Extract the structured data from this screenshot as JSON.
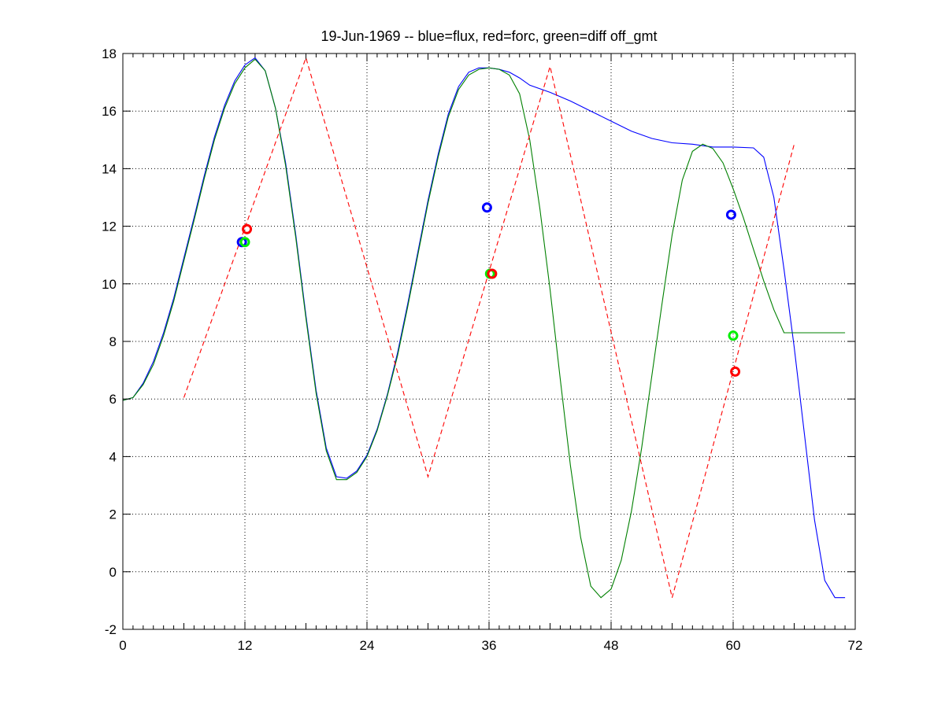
{
  "chart_data": {
    "type": "line",
    "title": "19-Jun-1969 -- blue=flux, red=forc, green=diff off_gmt",
    "xlabel": "",
    "ylabel": "",
    "xlim": [
      0,
      72
    ],
    "ylim": [
      -2,
      18
    ],
    "x_ticks": [
      0,
      12,
      24,
      36,
      48,
      60,
      72
    ],
    "y_ticks": [
      -2,
      0,
      2,
      4,
      6,
      8,
      10,
      12,
      14,
      16,
      18
    ],
    "grid": true,
    "minor_ticks": true,
    "colors": {
      "flux": "#0000ff",
      "forc": "#ff0000",
      "diff": "#008000",
      "marker_green": "#00ee00"
    },
    "series": [
      {
        "color": "#0000ff",
        "style": "solid",
        "x": [
          0,
          1,
          2,
          3,
          4,
          5,
          6,
          7,
          8,
          9,
          10,
          11,
          12,
          13,
          14,
          15,
          16,
          17,
          18,
          19,
          20,
          21,
          22,
          23,
          24,
          25,
          26,
          27,
          28,
          29,
          30,
          31,
          32,
          33,
          34,
          35,
          36,
          37,
          38,
          39,
          40,
          42,
          44,
          46,
          48,
          50,
          52,
          54,
          56,
          58,
          60,
          62,
          63,
          64,
          65,
          66,
          67,
          68,
          69,
          70,
          71
        ],
        "y": [
          5.95,
          6.05,
          6.55,
          7.3,
          8.3,
          9.5,
          10.9,
          12.3,
          13.75,
          15.1,
          16.2,
          17.05,
          17.6,
          17.85,
          17.4,
          16.1,
          14.2,
          11.7,
          8.9,
          6.3,
          4.3,
          3.3,
          3.25,
          3.5,
          4.05,
          4.95,
          6.15,
          7.6,
          9.3,
          11.1,
          12.9,
          14.5,
          15.9,
          16.85,
          17.35,
          17.5,
          17.5,
          17.45,
          17.35,
          17.15,
          16.9,
          16.65,
          16.35,
          16.0,
          15.65,
          15.3,
          15.05,
          14.9,
          14.85,
          14.75,
          14.75,
          14.72,
          14.4,
          13.0,
          10.5,
          7.8,
          4.8,
          1.8,
          -0.3,
          -0.9,
          -0.9
        ]
      },
      {
        "color": "#008000",
        "style": "solid",
        "x": [
          0,
          1,
          2,
          3,
          4,
          5,
          6,
          7,
          8,
          9,
          10,
          11,
          12,
          13,
          14,
          15,
          16,
          17,
          18,
          19,
          20,
          21,
          22,
          23,
          24,
          25,
          26,
          27,
          28,
          29,
          30,
          31,
          32,
          33,
          34,
          35,
          36,
          37,
          38,
          39,
          40,
          41,
          42,
          43,
          44,
          45,
          46,
          47,
          48,
          49,
          50,
          51,
          52,
          53,
          54,
          55,
          56,
          57,
          58,
          59,
          60,
          61,
          62,
          63,
          64,
          65,
          66,
          67,
          68,
          69,
          70,
          71
        ],
        "y": [
          5.95,
          6.05,
          6.5,
          7.2,
          8.2,
          9.4,
          10.8,
          12.2,
          13.65,
          15.0,
          16.1,
          16.95,
          17.5,
          17.8,
          17.4,
          16.1,
          14.1,
          11.6,
          8.8,
          6.2,
          4.2,
          3.2,
          3.2,
          3.45,
          4.0,
          4.9,
          6.1,
          7.5,
          9.2,
          11.0,
          12.8,
          14.4,
          15.8,
          16.75,
          17.25,
          17.45,
          17.5,
          17.45,
          17.25,
          16.6,
          15.0,
          12.6,
          9.8,
          6.7,
          3.7,
          1.2,
          -0.5,
          -0.9,
          -0.6,
          0.4,
          2.1,
          4.3,
          6.8,
          9.3,
          11.7,
          13.6,
          14.6,
          14.85,
          14.7,
          14.2,
          13.3,
          12.3,
          11.2,
          10.1,
          9.1,
          8.3,
          8.3,
          8.3,
          8.3,
          8.3,
          8.3,
          8.3
        ]
      },
      {
        "color": "#ff0000",
        "style": "dashed",
        "x": [
          6,
          18,
          30,
          42,
          54,
          66
        ],
        "y": [
          6.05,
          17.85,
          3.3,
          17.55,
          -0.9,
          14.85
        ]
      }
    ],
    "markers": [
      {
        "x": 11.7,
        "y": 11.45,
        "color": "#0000ff"
      },
      {
        "x": 12.2,
        "y": 11.9,
        "color": "#ff0000"
      },
      {
        "x": 12.0,
        "y": 11.45,
        "color": "#00ee00"
      },
      {
        "x": 35.8,
        "y": 12.65,
        "color": "#0000ff"
      },
      {
        "x": 36.1,
        "y": 10.35,
        "color": "#00ee00"
      },
      {
        "x": 36.3,
        "y": 10.35,
        "color": "#ff0000"
      },
      {
        "x": 59.8,
        "y": 12.4,
        "color": "#0000ff"
      },
      {
        "x": 60.0,
        "y": 8.2,
        "color": "#00ee00"
      },
      {
        "x": 60.2,
        "y": 6.95,
        "color": "#ff0000"
      }
    ]
  }
}
